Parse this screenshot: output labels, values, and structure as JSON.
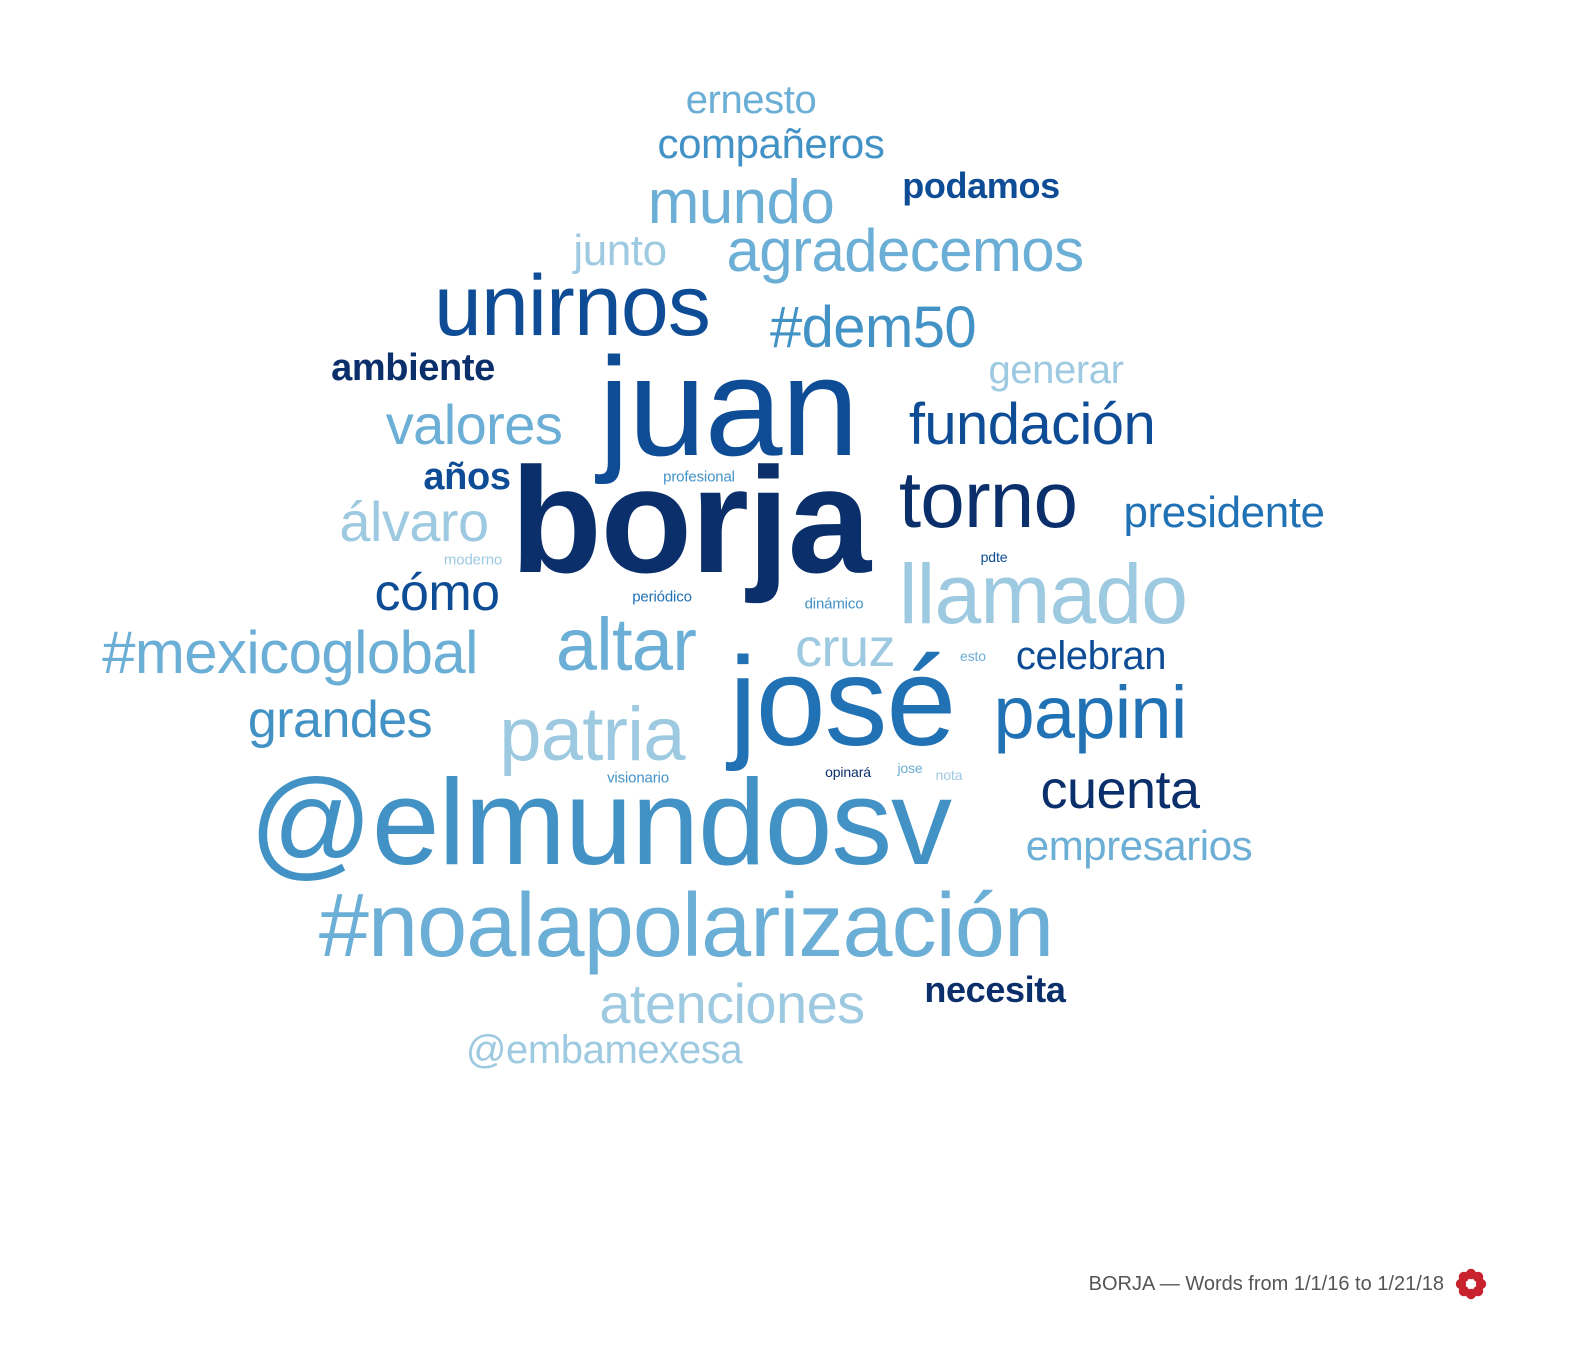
{
  "footer": {
    "caption": "BORJA — Words from 1/1/16 to 1/21/18",
    "logo_icon": "flower-logo-icon",
    "logo_color": "#c8222f"
  },
  "palette": {
    "darkest": "#0b2f6b",
    "dark": "#0e4c96",
    "mid": "#2171b5",
    "medium": "#4292c6",
    "light": "#6baed6",
    "lighter": "#9ecae1"
  },
  "words": [
    {
      "text": "borja",
      "tone": "darkest"
    },
    {
      "text": "juan",
      "tone": "dark"
    },
    {
      "text": "@elmundosv",
      "tone": "medium"
    },
    {
      "text": "josé",
      "tone": "mid"
    },
    {
      "text": "#noalapolarización",
      "tone": "light"
    },
    {
      "text": "unirnos",
      "tone": "dark"
    },
    {
      "text": "llamado",
      "tone": "lighter"
    },
    {
      "text": "torno",
      "tone": "darkest"
    },
    {
      "text": "patria",
      "tone": "lighter"
    },
    {
      "text": "altar",
      "tone": "light"
    },
    {
      "text": "papini",
      "tone": "mid"
    },
    {
      "text": "#mexicoglobal",
      "tone": "light"
    },
    {
      "text": "mundo",
      "tone": "light"
    },
    {
      "text": "agradecemos",
      "tone": "light"
    },
    {
      "text": "#dem50",
      "tone": "medium"
    },
    {
      "text": "fundación",
      "tone": "dark"
    },
    {
      "text": "valores",
      "tone": "light"
    },
    {
      "text": "atenciones",
      "tone": "lighter"
    },
    {
      "text": "álvaro",
      "tone": "lighter"
    },
    {
      "text": "cuenta",
      "tone": "darkest"
    },
    {
      "text": "grandes",
      "tone": "medium"
    },
    {
      "text": "cruz",
      "tone": "lighter"
    },
    {
      "text": "cómo",
      "tone": "dark"
    },
    {
      "text": "presidente",
      "tone": "mid"
    },
    {
      "text": "compañeros",
      "tone": "medium"
    },
    {
      "text": "empresarios",
      "tone": "light"
    },
    {
      "text": "ernesto",
      "tone": "light"
    },
    {
      "text": "podamos",
      "tone": "dark"
    },
    {
      "text": "ambiente",
      "tone": "darkest"
    },
    {
      "text": "celebran",
      "tone": "dark"
    },
    {
      "text": "@embamexesa",
      "tone": "lighter"
    },
    {
      "text": "junto",
      "tone": "lighter"
    },
    {
      "text": "generar",
      "tone": "lighter"
    },
    {
      "text": "años",
      "tone": "dark"
    },
    {
      "text": "necesita",
      "tone": "darkest"
    },
    {
      "text": "profesional",
      "tone": "medium"
    },
    {
      "text": "moderno",
      "tone": "lighter"
    },
    {
      "text": "pdte",
      "tone": "dark"
    },
    {
      "text": "periódico",
      "tone": "mid"
    },
    {
      "text": "dinámico",
      "tone": "medium"
    },
    {
      "text": "esto",
      "tone": "light"
    },
    {
      "text": "visionario",
      "tone": "medium"
    },
    {
      "text": "opinará",
      "tone": "darkest"
    },
    {
      "text": "jose",
      "tone": "light"
    },
    {
      "text": "nota",
      "tone": "lighter"
    }
  ]
}
